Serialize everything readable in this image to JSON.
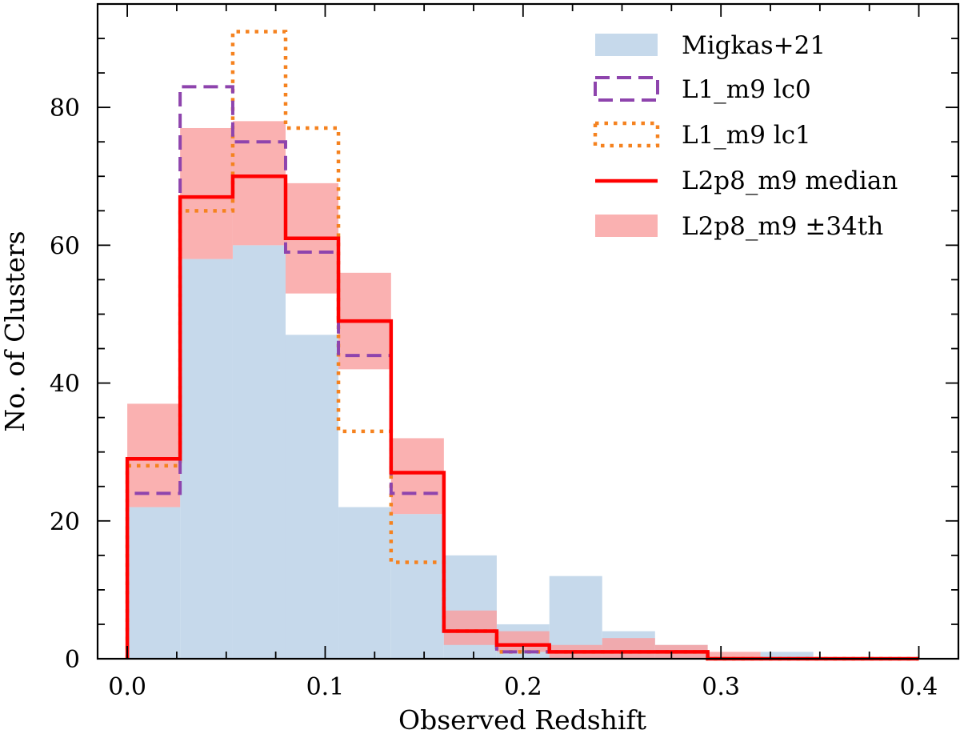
{
  "chart_data": {
    "type": "histogram",
    "xlabel": "Observed Redshift",
    "ylabel": "No. of Clusters",
    "xlim": [
      -0.015,
      0.42
    ],
    "ylim": [
      0,
      95
    ],
    "bin_edges": [
      0.0,
      0.0267,
      0.0533,
      0.08,
      0.1067,
      0.1333,
      0.16,
      0.1867,
      0.2133,
      0.24,
      0.2667,
      0.2933,
      0.32,
      0.3467,
      0.3733,
      0.4
    ],
    "x_ticks": [
      0.0,
      0.1,
      0.2,
      0.3,
      0.4
    ],
    "x_tick_labels": [
      "0.0",
      "0.1",
      "0.2",
      "0.3",
      "0.4"
    ],
    "y_ticks": [
      0,
      20,
      40,
      60,
      80
    ],
    "y_tick_labels": [
      "0",
      "20",
      "40",
      "60",
      "80"
    ],
    "series": [
      {
        "name": "Migkas+21",
        "style": "filled",
        "color": "#c6d9eb",
        "values": [
          22,
          58,
          60,
          47,
          22,
          21,
          15,
          5,
          12,
          4,
          2,
          0,
          1,
          0,
          0
        ]
      },
      {
        "name": "L1_m9 lc0",
        "style": "dashed",
        "color": "#8e44ad",
        "values": [
          24,
          83,
          75,
          59,
          44,
          24,
          4,
          1,
          1,
          1,
          1,
          0,
          0,
          0,
          0
        ]
      },
      {
        "name": "L1_m9 lc1",
        "style": "dotted",
        "color": "#f5821f",
        "values": [
          28,
          65,
          91,
          77,
          33,
          14,
          4,
          1,
          1,
          1,
          1,
          0,
          0,
          0,
          0
        ]
      },
      {
        "name": "L2p8_m9 median",
        "style": "solid",
        "color": "#ff0000",
        "values": [
          29,
          67,
          70,
          61,
          49,
          27,
          4,
          2,
          1,
          1,
          1,
          0,
          0,
          0,
          0
        ]
      },
      {
        "name": "L2p8_m9 ±34th",
        "style": "band",
        "color": "#f9a0a0",
        "lower": [
          22,
          58,
          60,
          53,
          42,
          21,
          2,
          1,
          0,
          0,
          0,
          0,
          0,
          0,
          0
        ],
        "upper": [
          37,
          77,
          78,
          69,
          56,
          32,
          7,
          4,
          2,
          3,
          2,
          1,
          0,
          0,
          0
        ]
      }
    ],
    "legend": {
      "position": "top-right",
      "entries": [
        "Migkas+21",
        "L1_m9 lc0",
        "L1_m9 lc1",
        "L2p8_m9 median",
        "L2p8_m9 ±34th"
      ]
    }
  }
}
